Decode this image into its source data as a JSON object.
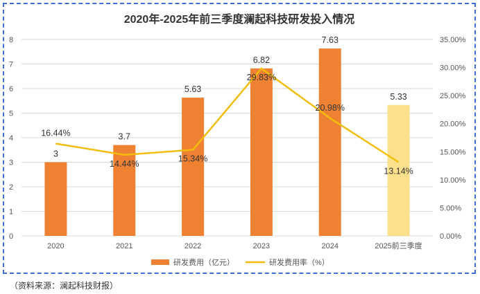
{
  "chart_data": {
    "type": "bar+line",
    "title": "2020年-2025年前三季度澜起科技研发投入情况",
    "categories": [
      "2020",
      "2021",
      "2022",
      "2023",
      "2024",
      "2025前三季度"
    ],
    "series": [
      {
        "name": "研发费用（亿元）",
        "type": "bar",
        "axis": "left",
        "values": [
          3,
          3.7,
          5.63,
          6.82,
          7.63,
          5.33
        ],
        "labels": [
          "3",
          "3.7",
          "5.63",
          "6.82",
          "7.63",
          "5.33"
        ]
      },
      {
        "name": "研发费用率（%）",
        "type": "line",
        "axis": "right",
        "values": [
          16.44,
          14.44,
          15.34,
          29.83,
          20.98,
          13.14
        ],
        "labels": [
          "16.44%",
          "14.44%",
          "15.34%",
          "29.83%",
          "20.98%",
          "13.14%"
        ]
      }
    ],
    "y_left": {
      "range": [
        0,
        8
      ],
      "ticks": [
        "0",
        "1",
        "2",
        "3",
        "4",
        "5",
        "6",
        "7",
        "8"
      ]
    },
    "y_right": {
      "range": [
        0,
        35
      ],
      "ticks": [
        "0.00%",
        "5.00%",
        "10.00%",
        "15.00%",
        "20.00%",
        "25.00%",
        "30.00%",
        "35.00%"
      ]
    },
    "grid": true,
    "legend_position": "bottom"
  },
  "colors": {
    "bar": "#ef8132",
    "bar_highlight": "#fde08c",
    "line": "#f2bd0c",
    "grid": "#d9d9d9",
    "frame": "#3f6fd6"
  },
  "source": "（资料来源：澜起科技财报）"
}
